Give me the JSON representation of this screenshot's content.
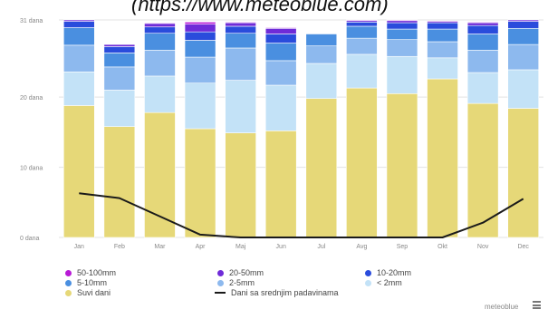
{
  "source_text": "(https://www.meteoblue.com)",
  "brand_label": "meteoblue",
  "legend": [
    {
      "label": "50-100mm",
      "color": "#b81ad6"
    },
    {
      "label": "20-50mm",
      "color": "#6f2bd8"
    },
    {
      "label": "10-20mm",
      "color": "#2a4cdc"
    },
    {
      "label": "5-10mm",
      "color": "#4a8fe0"
    },
    {
      "label": "2-5mm",
      "color": "#8db9ee"
    },
    {
      "label": "< 2mm",
      "color": "#c3e2f7"
    },
    {
      "label": "Suvi dani",
      "color": "#e6d878"
    },
    {
      "label": "Dani sa srednjim padavinama",
      "color": "#1a1a1a",
      "kind": "line"
    }
  ],
  "chart_data": {
    "type": "bar",
    "stacked": true,
    "categories": [
      "Jan",
      "Feb",
      "Mar",
      "Apr",
      "Maj",
      "Jun",
      "Jul",
      "Avg",
      "Sep",
      "Okt",
      "Nov",
      "Dec"
    ],
    "ylim": [
      0,
      31
    ],
    "yticks": [
      0,
      10,
      20,
      31
    ],
    "ytick_labels": [
      "0 dana",
      "10 dana",
      "20 dana",
      "31 dana"
    ],
    "series": [
      {
        "name": "Suvi dani",
        "color": "#e6d878",
        "values": [
          18.8,
          15.8,
          17.8,
          15.5,
          14.9,
          15.2,
          19.8,
          21.3,
          20.5,
          22.6,
          19.1,
          18.4
        ]
      },
      {
        "name": "< 2mm",
        "color": "#c3e2f7",
        "values": [
          4.8,
          5.2,
          5.2,
          6.5,
          7.5,
          6.5,
          5.0,
          4.8,
          5.3,
          3.0,
          4.4,
          5.5
        ]
      },
      {
        "name": "2-5mm",
        "color": "#8db9ee",
        "values": [
          3.8,
          3.3,
          3.7,
          3.7,
          4.6,
          3.5,
          2.5,
          2.3,
          2.4,
          2.3,
          3.2,
          3.6
        ]
      },
      {
        "name": "5-10mm",
        "color": "#4a8fe0",
        "values": [
          2.5,
          2.0,
          2.4,
          2.4,
          2.1,
          2.5,
          1.7,
          1.7,
          1.5,
          1.8,
          2.3,
          2.3
        ]
      },
      {
        "name": "10-20mm",
        "color": "#2a4cdc",
        "values": [
          0.9,
          0.9,
          0.9,
          1.2,
          1.0,
          1.3,
          0.0,
          0.6,
          0.9,
          0.9,
          1.2,
          1.0
        ]
      },
      {
        "name": "20-50mm",
        "color": "#6f2bd8",
        "values": [
          0.2,
          0.3,
          0.5,
          1.1,
          0.5,
          0.8,
          0.0,
          0.2,
          0.3,
          0.2,
          0.4,
          0.2
        ]
      },
      {
        "name": "50-100mm",
        "color": "#b81ad6",
        "values": [
          0.0,
          0.0,
          0.1,
          0.3,
          0.1,
          0.1,
          0.0,
          0.1,
          0.1,
          0.1,
          0.1,
          0.0
        ]
      }
    ],
    "line_series": {
      "name": "Dani sa srednjim padavinama",
      "color": "#1a1a1a",
      "values": [
        6.3,
        5.6,
        3.0,
        0.4,
        0.0,
        0.0,
        0.0,
        0.0,
        0.0,
        0.0,
        2.1,
        5.5
      ]
    },
    "grid": true,
    "legend_position": "bottom"
  }
}
